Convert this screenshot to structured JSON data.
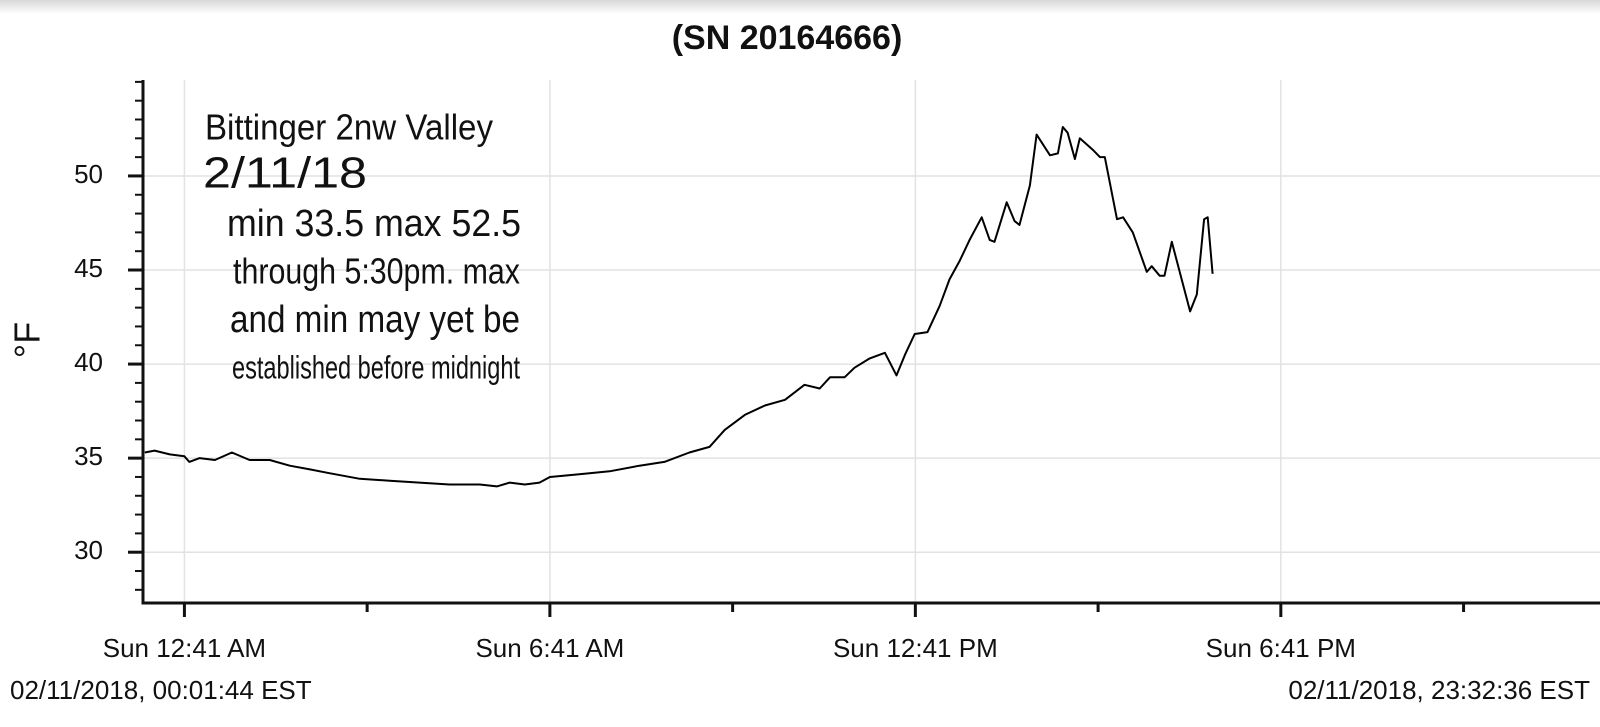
{
  "chart_data": {
    "type": "line",
    "title": "(SN 20164666)",
    "y_label": "°F",
    "annotation": [
      "Bittinger 2nw Valley",
      "2/11/18",
      "min 33.5 max 52.5",
      "through 5:30pm. max",
      "and min may yet be",
      "established before midnight"
    ],
    "footer_left": "02/11/2018, 00:01:44 EST",
    "footer_right": "02/11/2018, 23:32:36 EST",
    "color": "#000000",
    "grid": true,
    "x": [
      0.03,
      0.19,
      0.44,
      0.68,
      0.76,
      0.93,
      1.18,
      1.46,
      1.75,
      2.08,
      2.41,
      2.74,
      3.06,
      3.56,
      4.05,
      4.54,
      5.03,
      5.53,
      5.81,
      6.02,
      6.27,
      6.51,
      6.68,
      7.01,
      7.33,
      7.66,
      8.15,
      8.56,
      8.97,
      9.3,
      9.55,
      9.88,
      10.21,
      10.54,
      10.86,
      11.11,
      11.28,
      11.52,
      11.68,
      11.93,
      12.18,
      12.37,
      12.51,
      12.67,
      12.88,
      13.08,
      13.24,
      13.41,
      13.57,
      13.77,
      13.9,
      13.98,
      14.18,
      14.31,
      14.39,
      14.56,
      14.67,
      14.89,
      15.02,
      15.1,
      15.18,
      15.3,
      15.38,
      15.59,
      15.71,
      15.79,
      15.99,
      16.09,
      16.25,
      16.48,
      16.56,
      16.69,
      16.77,
      16.89,
      17.02,
      17.19,
      17.3,
      17.42,
      17.48,
      17.56
    ],
    "values": [
      35.3,
      35.4,
      35.2,
      35.1,
      34.8,
      35.0,
      34.9,
      35.3,
      34.9,
      34.9,
      34.6,
      34.4,
      34.2,
      33.9,
      33.8,
      33.7,
      33.6,
      33.6,
      33.5,
      33.7,
      33.6,
      33.7,
      34.0,
      34.1,
      34.2,
      34.3,
      34.6,
      34.8,
      35.3,
      35.6,
      36.5,
      37.3,
      37.8,
      38.1,
      38.9,
      38.7,
      39.3,
      39.3,
      39.8,
      40.3,
      40.6,
      39.4,
      40.5,
      41.6,
      41.7,
      43.1,
      44.5,
      45.5,
      46.6,
      47.8,
      46.6,
      46.5,
      48.6,
      47.6,
      47.4,
      49.5,
      52.2,
      51.1,
      51.2,
      52.6,
      52.3,
      50.9,
      52.0,
      51.4,
      51.0,
      51.0,
      47.7,
      47.8,
      47.0,
      44.9,
      45.2,
      44.7,
      44.7,
      46.5,
      44.9,
      42.8,
      43.7,
      47.7,
      47.8,
      44.8
    ],
    "xlim": [
      0,
      23.92
    ],
    "xticks": [
      {
        "value": 0.68,
        "label": "Sun 12:41 AM"
      },
      {
        "value": 6.68,
        "label": "Sun 6:41 AM"
      },
      {
        "value": 12.68,
        "label": "Sun 12:41 PM"
      },
      {
        "value": 18.68,
        "label": "Sun 6:41 PM"
      }
    ],
    "xminorticks": [
      3.68,
      9.68,
      15.68,
      21.68
    ],
    "ylim": [
      27.3,
      55.1
    ],
    "yticks": [
      30,
      35,
      40,
      45,
      50
    ],
    "yminorticks": [
      28,
      29,
      31,
      32,
      33,
      34,
      36,
      37,
      38,
      39,
      41,
      42,
      43,
      44,
      46,
      47,
      48,
      49,
      51,
      52,
      53,
      54,
      55
    ]
  }
}
